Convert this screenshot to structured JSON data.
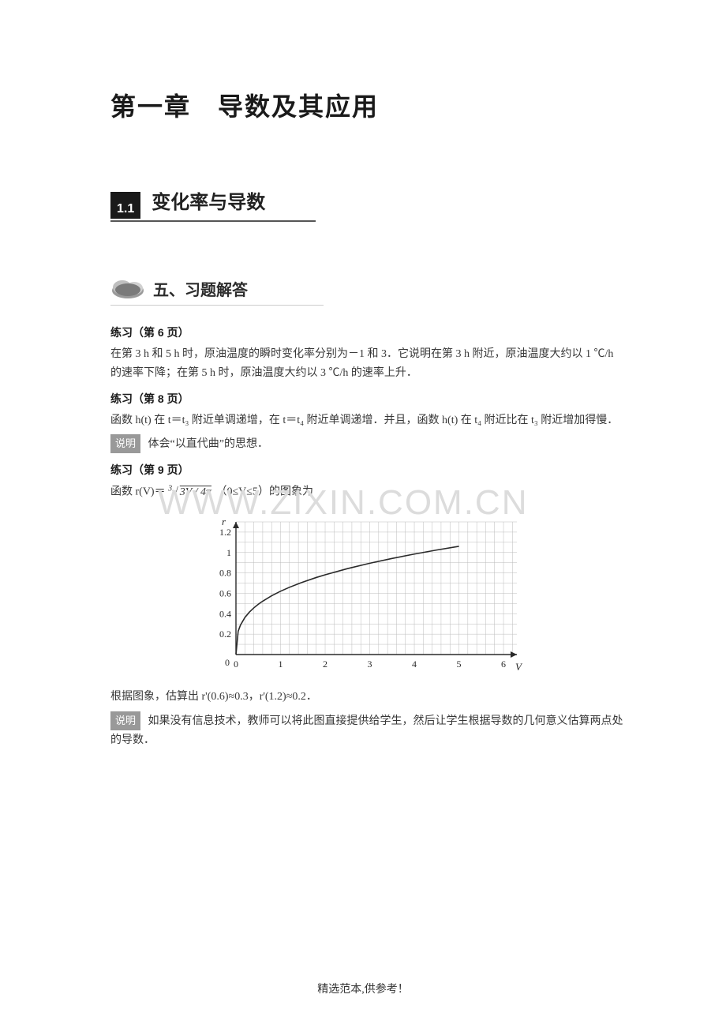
{
  "chapter_title": "第一章　导数及其应用",
  "section": {
    "number": "1.1",
    "title": "变化率与导数"
  },
  "subheader": "五、习题解答",
  "practice1": {
    "label": "练习（第 6 页）",
    "text": "在第 3 h 和 5 h 时，原油温度的瞬时变化率分别为－1 和 3．它说明在第 3 h 附近，原油温度大约以 1 ℃/h 的速率下降；在第 5 h 时，原油温度大约以 3 ℃/h 的速率上升．"
  },
  "practice2": {
    "label": "练习（第 8 页）",
    "text": "函数 h(t) 在 t＝t₃ 附近单调递增，在 t＝t₄ 附近单调递增．并且，函数 h(t) 在 t₄ 附近比在 t₃ 附近增加得慢．",
    "note_label": "说明",
    "note_text": "体会“以直代曲”的思想．"
  },
  "practice3": {
    "label": "练习（第 9 页）",
    "formula_prefix": "函数 r(V)＝",
    "formula_radical": "³√(3V / 4π)",
    "formula_suffix": "（0≤V≤5）的图象为",
    "after_chart": "根据图象，估算出 r'(0.6)≈0.3，r'(1.2)≈0.2．",
    "note_label": "说明",
    "note_text": "如果没有信息技术，教师可以将此图直接提供给学生，然后让学生根据导数的几何意义估算两点处的导数．"
  },
  "chart": {
    "type": "line",
    "xlim": [
      0,
      6.3
    ],
    "ylim": [
      0,
      1.3
    ],
    "xticks": [
      0,
      1,
      2,
      3,
      4,
      5,
      6
    ],
    "yticks": [
      0.2,
      0.4,
      0.6,
      0.8,
      1,
      1.2
    ],
    "x_axis_label": "V",
    "y_axis_label": "r",
    "grid_minor_step_x": 0.2,
    "grid_minor_step_y": 0.1,
    "grid_color": "#bcbcbc",
    "axis_color": "#2a2a2a",
    "curve_color": "#2a2a2a",
    "curve_width": 1.6,
    "background_color": "#ffffff",
    "tick_fontsize": 12,
    "label_fontsize": 13,
    "curve_points": [
      [
        0,
        0
      ],
      [
        0.05,
        0.2285
      ],
      [
        0.1,
        0.2879
      ],
      [
        0.2,
        0.3628
      ],
      [
        0.3,
        0.4153
      ],
      [
        0.4,
        0.4571
      ],
      [
        0.5,
        0.4924
      ],
      [
        0.6,
        0.5232
      ],
      [
        0.8,
        0.5758
      ],
      [
        1.0,
        0.6204
      ],
      [
        1.2,
        0.6592
      ],
      [
        1.5,
        0.7101
      ],
      [
        1.8,
        0.755
      ],
      [
        2.0,
        0.7816
      ],
      [
        2.5,
        0.8419
      ],
      [
        3.0,
        0.8947
      ],
      [
        3.5,
        0.9417
      ],
      [
        4.0,
        0.9847
      ],
      [
        4.5,
        1.0242
      ],
      [
        5.0,
        1.0608
      ]
    ]
  },
  "watermark": "WWW.ZIXIN.COM.CN",
  "footer": "精选范本,供参考！"
}
